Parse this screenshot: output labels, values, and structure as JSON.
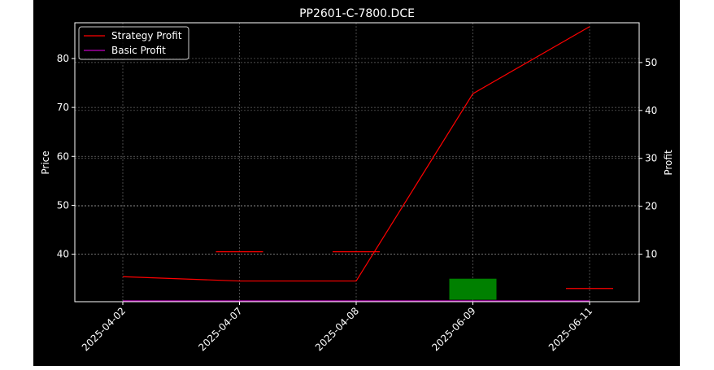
{
  "chart_data": {
    "type": "line",
    "title": "PP2601-C-7800.DCE",
    "xlabel": "",
    "ylabel_left": "Price",
    "ylabel_right": "Profit",
    "categories": [
      "2025-04-02",
      "2025-04-07",
      "2025-04-08",
      "2025-06-09",
      "2025-06-11"
    ],
    "y_left": {
      "ticks": [
        40,
        50,
        60,
        70,
        80
      ],
      "range": [
        30.3,
        87.3
      ]
    },
    "y_right": {
      "ticks": [
        10,
        20,
        30,
        40,
        50
      ],
      "range": [
        0.08,
        58.3
      ]
    },
    "series": [
      {
        "name": "Strategy Profit",
        "axis": "right",
        "color": "#ff0000",
        "values": [
          5.3,
          4.4,
          4.4,
          43.5,
          57.5
        ]
      },
      {
        "name": "Basic Profit",
        "axis": "right",
        "color": "#bf00bf",
        "values": [
          0.2,
          0.2,
          0.2,
          0.2,
          0.2
        ]
      }
    ],
    "candles": [
      {
        "category": "2025-04-07",
        "open": 40.5,
        "close": 40.5,
        "color": "#ff0000"
      },
      {
        "category": "2025-04-08",
        "open": 40.5,
        "close": 40.5,
        "color": "#ff0000"
      },
      {
        "category": "2025-06-09",
        "open": 30.7,
        "close": 35.0,
        "color": "#008000"
      },
      {
        "category": "2025-06-11",
        "open": 33.0,
        "close": 33.0,
        "color": "#ff0000"
      }
    ],
    "grid": true,
    "grid_color": "#b0b0b0",
    "legend": "top-left",
    "background": "#000000",
    "foreground": "#ffffff"
  }
}
